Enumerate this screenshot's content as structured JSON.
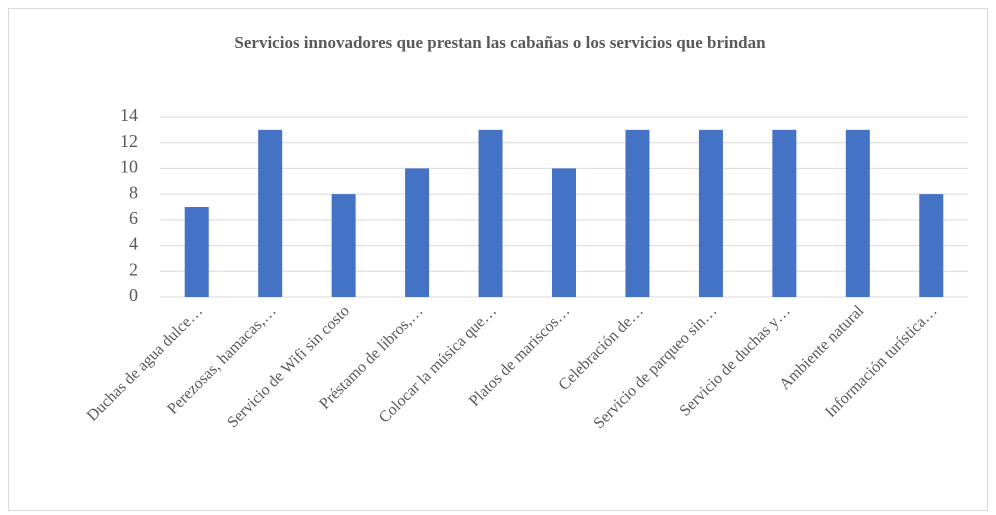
{
  "chart_data": {
    "type": "bar",
    "title": "Servicios innovadores que prestan las cabañas o los servicios que brindan",
    "categories": [
      "Duchas de agua dulce…",
      "Perezosas, hamacas,…",
      "Servicio de Wifi sin costo",
      "Préstamo de libros,…",
      "Colocar la música que…",
      "Platos de mariscos…",
      "Celebración de…",
      "Servicio de parqueo sin…",
      "Servicio de duchas y…",
      "Ambiente natural",
      "Información turística…"
    ],
    "values": [
      7,
      13,
      8,
      10,
      13,
      10,
      13,
      13,
      13,
      13,
      8
    ],
    "color": "#4472c4",
    "ylim": [
      0,
      14
    ],
    "yticks": [
      0,
      2,
      4,
      6,
      8,
      10,
      12,
      14
    ],
    "grid": true
  }
}
